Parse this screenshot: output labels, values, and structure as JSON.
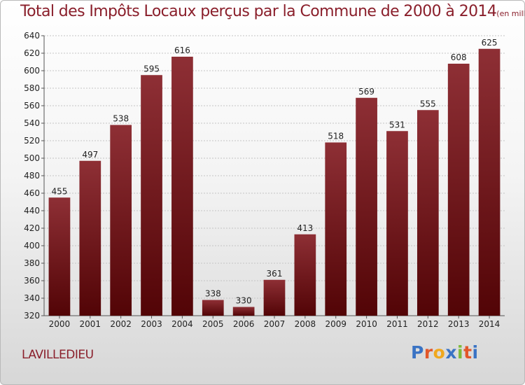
{
  "header": {
    "title": "Total des Impôts Locaux perçus par la Commune de 2000 à 2014",
    "unit": "(en milliers d'€)"
  },
  "footer": {
    "commune": "LAVILLEDIEU",
    "logo": "Proxiti"
  },
  "colors": {
    "title": "#8a1f2b",
    "bar_light": "#8e2f35",
    "bar_dark": "#520406",
    "logo_letters": [
      "#3a73c4",
      "#e2572a",
      "#f0a81e",
      "#3a73c4",
      "#7dbb3a",
      "#e2572a",
      "#3a73c4"
    ]
  },
  "chart_data": {
    "type": "bar",
    "categories": [
      "2000",
      "2001",
      "2002",
      "2003",
      "2004",
      "2005",
      "2006",
      "2007",
      "2008",
      "2009",
      "2010",
      "2011",
      "2012",
      "2013",
      "2014"
    ],
    "values": [
      455,
      497,
      538,
      595,
      616,
      338,
      330,
      361,
      413,
      518,
      569,
      531,
      555,
      608,
      625
    ],
    "ylim": [
      320,
      640
    ],
    "yticks": [
      320,
      340,
      360,
      380,
      400,
      420,
      440,
      460,
      480,
      500,
      520,
      540,
      560,
      580,
      600,
      620,
      640
    ],
    "grid": true
  }
}
